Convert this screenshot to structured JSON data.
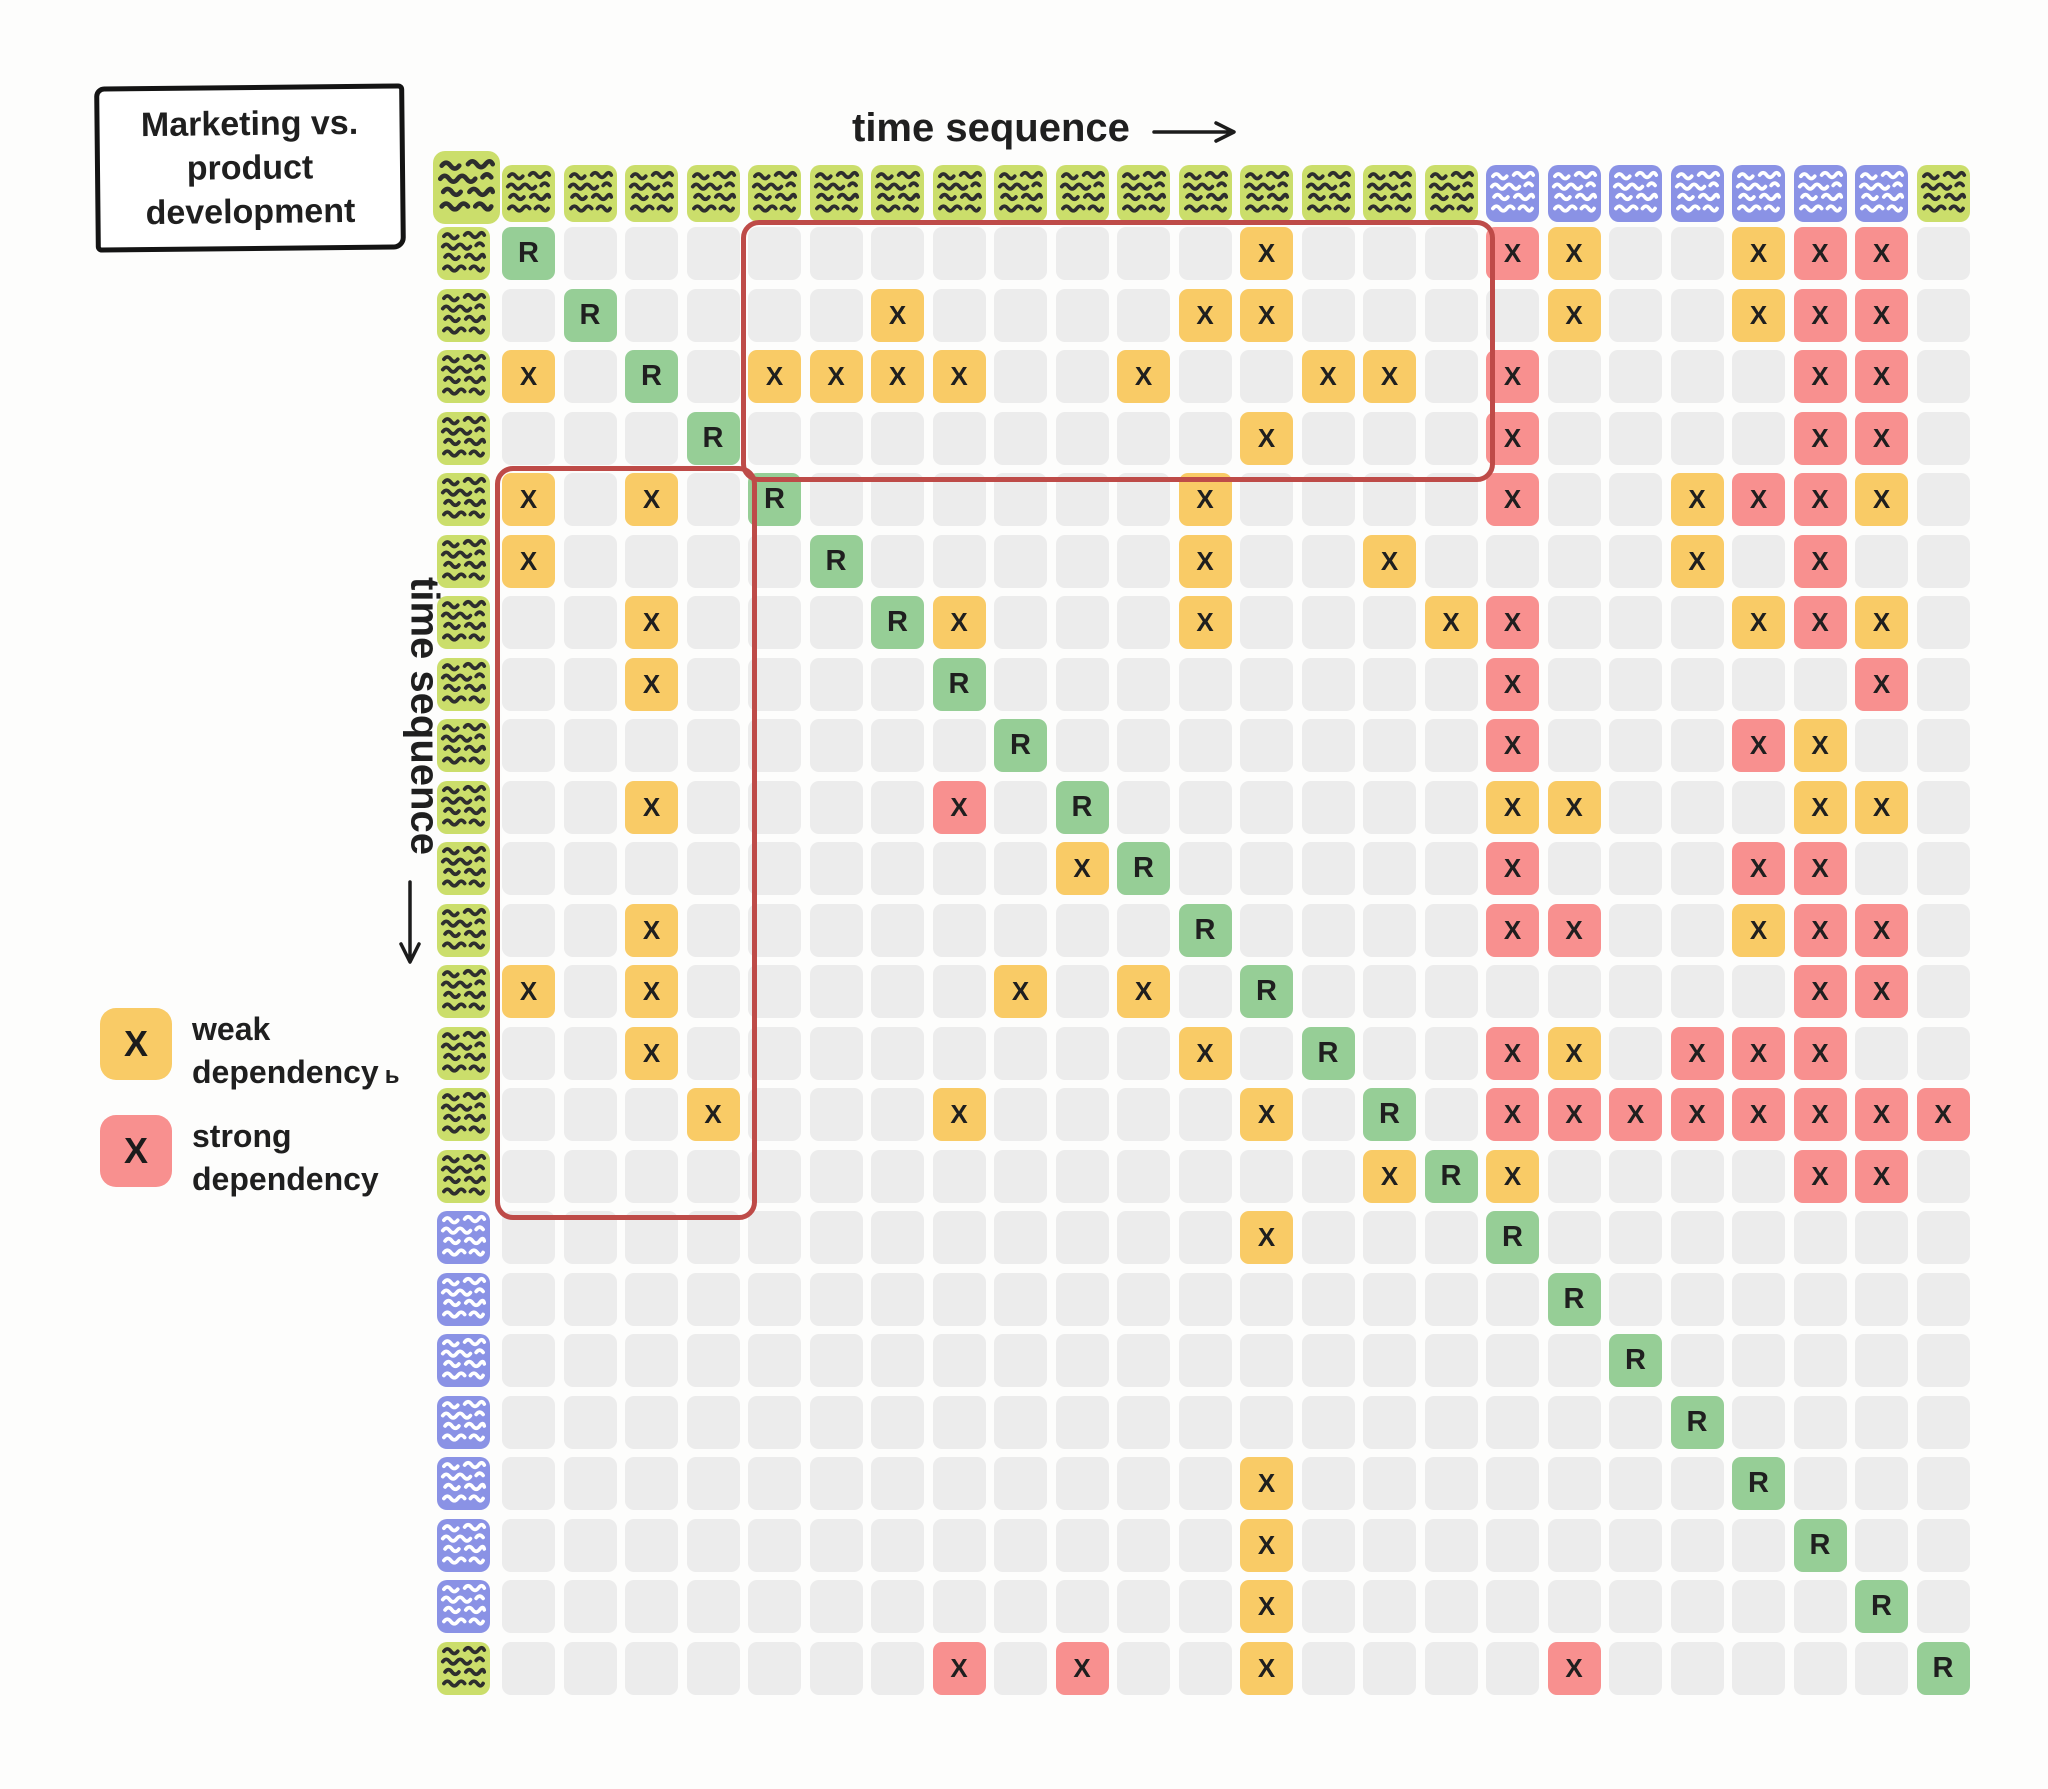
{
  "title": {
    "line1": "Marketing vs.",
    "line2": "product",
    "line3": "development"
  },
  "axes": {
    "top_label": "time sequence",
    "left_label": "time sequence"
  },
  "legend": {
    "weak": {
      "mark": "X",
      "line1": "weak",
      "line2": "dependency",
      "suffix": "ь"
    },
    "strong": {
      "mark": "X",
      "line1": "strong",
      "line2": "dependency",
      "suffix": ""
    }
  },
  "matrix": {
    "size": 24,
    "cell_codes": {
      ".": "empty",
      "R": "task-diagonal",
      "w": "weak dependency",
      "s": "strong dependency"
    },
    "marks": {
      "R": "R",
      "w": "X",
      "s": "X"
    },
    "column_header_types": [
      "g",
      "g",
      "g",
      "g",
      "g",
      "g",
      "g",
      "g",
      "g",
      "g",
      "g",
      "g",
      "g",
      "g",
      "g",
      "g",
      "p",
      "p",
      "p",
      "p",
      "p",
      "p",
      "p",
      "g"
    ],
    "row_header_types": [
      "g",
      "g",
      "g",
      "g",
      "g",
      "g",
      "g",
      "g",
      "g",
      "g",
      "g",
      "g",
      "g",
      "g",
      "g",
      "g",
      "p",
      "p",
      "p",
      "p",
      "p",
      "p",
      "p",
      "g"
    ],
    "rows": [
      "R...........w...sw..wss.",
      ".R....w....ww....w..wss.",
      "w.R.wwww..w..ww.s....ss.",
      "...R........w...s....ss.",
      "w.w.R......w....s..wssw.",
      "w....R.....w..w....w.s..",
      "..w...Rw...w...ws...wsw.",
      "..w....R........s.....s.",
      "........R.......s...sw..",
      "..w....s.R......ww...ww.",
      ".........wR.....s...ss..",
      "..w........R....ss..wss.",
      "w.w.....w.w.R........ss.",
      "..w........w.R..sw.sss..",
      "...w...w....w.R.ssssssss",
      "..............wRw....ss.",
      "............w...R.......",
      ".................R......",
      "..................R.....",
      "...................R....",
      "............w.......R...",
      "............w........R..",
      "............w.........R.",
      ".......s.s..w....s.....R"
    ]
  },
  "highlight_regions": [
    {
      "name": "top-box",
      "rows": "1-4",
      "cols": "5-16"
    },
    {
      "name": "left-box",
      "rows": "5-16",
      "cols": "1-4"
    }
  ],
  "colors": {
    "weak": "#F9CB66",
    "strong": "#F8908F",
    "diagonal": "#96CE96",
    "empty_cell": "#ECECEC",
    "header_green": "#CBDE6B",
    "header_purple": "#8A92E5",
    "highlight_stroke": "#BE4B48",
    "ink": "#1F1F1F"
  }
}
